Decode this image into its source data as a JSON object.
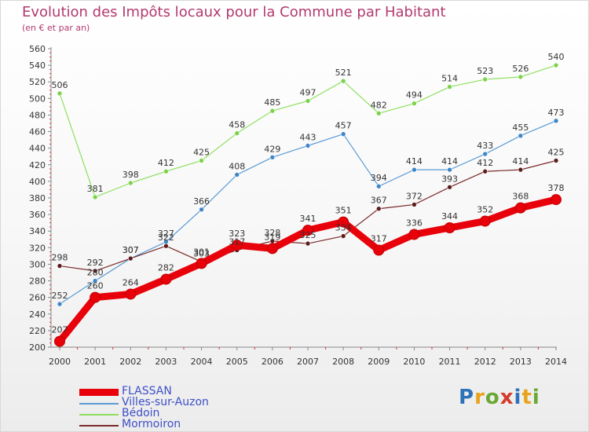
{
  "title": "Evolution des Impôts locaux pour la Commune par Habitant",
  "subtitle": "(en € et par an)",
  "logo": {
    "text": "Proxiti",
    "colors": [
      "#2e73b8",
      "#e8a21b",
      "#6aa834",
      "#d33b2c",
      "#2e73b8",
      "#e8a21b",
      "#6aa834"
    ]
  },
  "chart_data": {
    "type": "line",
    "x": [
      2000,
      2001,
      2002,
      2003,
      2004,
      2005,
      2006,
      2007,
      2008,
      2009,
      2010,
      2011,
      2012,
      2013,
      2014
    ],
    "ylim": [
      200,
      560
    ],
    "ytick_step": 20,
    "grid": false,
    "legend_position": "bottom-left",
    "series": [
      {
        "name": "FLASSAN",
        "color": "#e8000a",
        "values": [
          207,
          260,
          264,
          282,
          301,
          323,
          319,
          341,
          351,
          317,
          336,
          344,
          352,
          368,
          378
        ]
      },
      {
        "name": "Villes-sur-Auzon",
        "color": "#5b9bd5",
        "values": [
          252,
          280,
          307,
          327,
          366,
          408,
          429,
          443,
          457,
          394,
          414,
          414,
          433,
          455,
          473
        ]
      },
      {
        "name": "Bédoin",
        "color": "#8ee060",
        "values": [
          506,
          381,
          398,
          412,
          425,
          458,
          485,
          497,
          521,
          482,
          494,
          514,
          523,
          526,
          540
        ]
      },
      {
        "name": "Mormoiron",
        "color": "#7a2a2a",
        "values": [
          298,
          292,
          307,
          322,
          303,
          317,
          328,
          325,
          334,
          367,
          372,
          393,
          412,
          414,
          425
        ]
      }
    ]
  }
}
